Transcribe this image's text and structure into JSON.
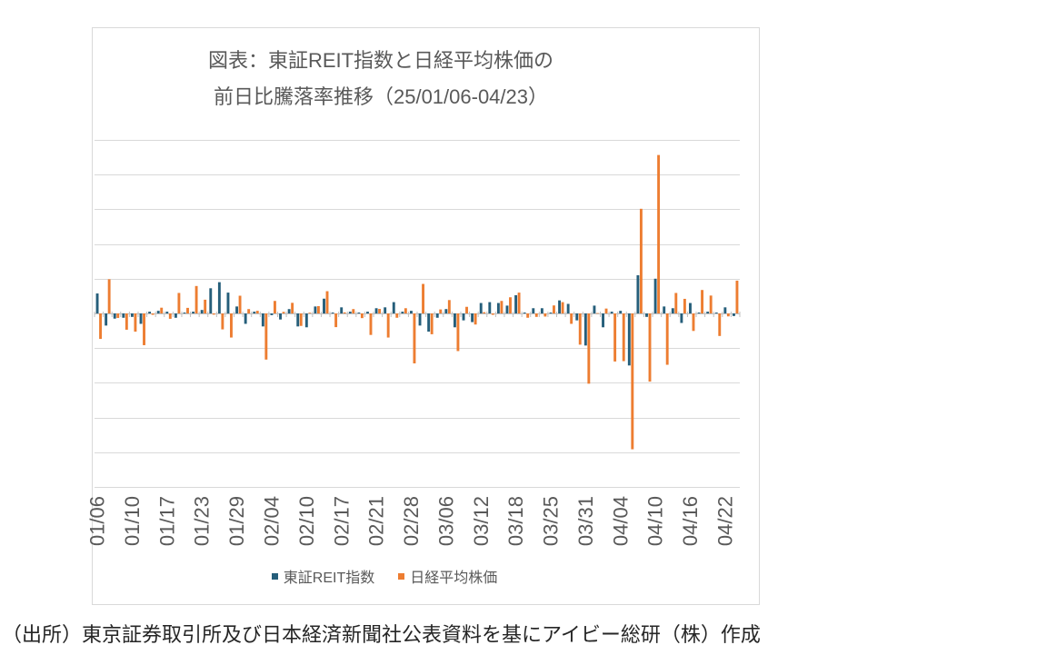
{
  "chart_data": {
    "type": "bar",
    "title_lines": [
      "図表：東証REIT指数と日経平均株価の",
      "前日比騰落率推移（25/01/06-04/23）"
    ],
    "categories": [
      "01/06",
      "",
      "",
      "",
      "01/10",
      "",
      "",
      "",
      "01/17",
      "",
      "",
      "",
      "01/23",
      "",
      "",
      "",
      "01/29",
      "",
      "",
      "",
      "02/04",
      "",
      "",
      "",
      "02/10",
      "",
      "",
      "",
      "02/17",
      "",
      "",
      "",
      "02/21",
      "",
      "",
      "",
      "02/28",
      "",
      "",
      "",
      "03/06",
      "",
      "",
      "",
      "03/12",
      "",
      "",
      "",
      "03/18",
      "",
      "",
      "",
      "03/25",
      "",
      "",
      "",
      "03/31",
      "",
      "",
      "",
      "04/04",
      "",
      "",
      "",
      "04/10",
      "",
      "",
      "",
      "04/16",
      "",
      "",
      "",
      "04/22",
      ""
    ],
    "series": [
      {
        "name": "東証REIT指数",
        "color": "#255E7A",
        "values": [
          1.15,
          -0.7,
          -0.3,
          -0.25,
          -0.2,
          -0.6,
          0.1,
          0.15,
          0.1,
          -0.25,
          0.05,
          0.1,
          0.2,
          1.45,
          1.8,
          1.2,
          0.4,
          -0.6,
          0.1,
          -0.75,
          -0.1,
          -0.35,
          0.25,
          -0.75,
          -0.8,
          0.4,
          0.85,
          0.05,
          0.35,
          0.1,
          0.05,
          0.1,
          0.3,
          0.35,
          0.65,
          0.1,
          0.15,
          -0.7,
          -1.05,
          -0.25,
          0.25,
          -0.8,
          -0.4,
          -0.5,
          0.6,
          0.65,
          0.6,
          0.45,
          1.05,
          0.05,
          0.3,
          0.3,
          0.05,
          0.75,
          0.55,
          -0.4,
          -1.85,
          0.45,
          -0.8,
          0.1,
          0.15,
          -3.0,
          2.2,
          -0.2,
          2.0,
          0.4,
          0.3,
          -0.55,
          0.6,
          0.05,
          0.1,
          0.05,
          0.35,
          -0.15
        ]
      },
      {
        "name": "日経平均株価",
        "color": "#ED7D31",
        "values": [
          -1.47,
          1.97,
          -0.26,
          -0.94,
          -1.05,
          -1.83,
          -0.08,
          0.33,
          -0.31,
          1.18,
          0.32,
          1.58,
          0.79,
          -0.07,
          -0.92,
          -1.39,
          1.02,
          0.25,
          0.15,
          -2.66,
          0.72,
          0.09,
          0.61,
          -0.72,
          0.04,
          0.42,
          1.28,
          -0.79,
          0.06,
          0.25,
          -0.27,
          -1.24,
          0.26,
          -1.39,
          -0.25,
          0.3,
          -2.88,
          1.7,
          -1.2,
          0.23,
          0.77,
          -2.17,
          0.38,
          -0.64,
          0.07,
          -0.08,
          0.72,
          0.93,
          1.2,
          -0.25,
          -0.2,
          -0.18,
          0.46,
          0.65,
          -0.6,
          -1.8,
          -4.05,
          0.02,
          0.28,
          -2.77,
          -2.75,
          -7.83,
          6.03,
          -3.93,
          9.13,
          -2.96,
          1.18,
          0.84,
          -1.01,
          1.35,
          1.03,
          -1.3,
          -0.17,
          1.89
        ]
      }
    ],
    "ylim": [
      -10,
      10
    ],
    "grid": true,
    "grid_step": 2,
    "legend": "bottom"
  },
  "source_note": "（出所）東京証券取引所及び日本経済新聞社公表資料を基にアイビー総研（株）作成"
}
